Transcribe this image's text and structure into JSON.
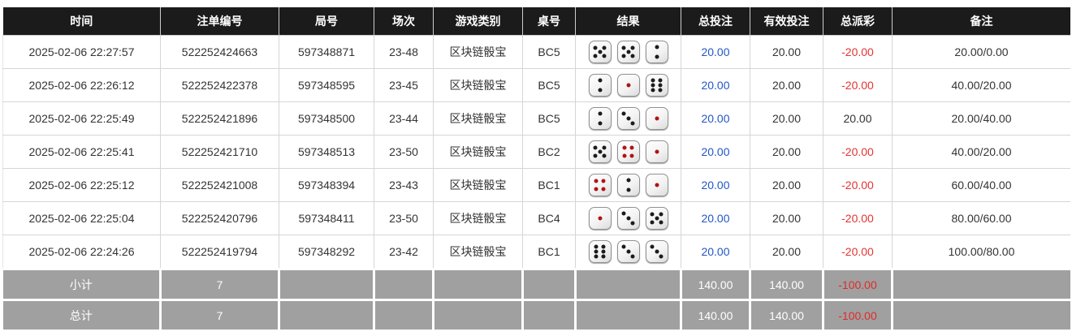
{
  "table": {
    "headers": [
      {
        "key": "time",
        "label": "时间"
      },
      {
        "key": "bet-id",
        "label": "注单编号"
      },
      {
        "key": "round-id",
        "label": "局号"
      },
      {
        "key": "session",
        "label": "场次"
      },
      {
        "key": "game-type",
        "label": "游戏类别"
      },
      {
        "key": "table-no",
        "label": "桌号"
      },
      {
        "key": "result",
        "label": "结果"
      },
      {
        "key": "total-bet",
        "label": "总投注"
      },
      {
        "key": "valid-bet",
        "label": "有效投注"
      },
      {
        "key": "payout",
        "label": "总派彩"
      },
      {
        "key": "remark",
        "label": "备注"
      }
    ],
    "rows": [
      {
        "time": "2025-02-06 22:27:57",
        "bet_id": "522252424663",
        "round_id": "597348871",
        "session": "23-48",
        "game_type": "区块链骰宝",
        "table_no": "BC5",
        "dice": [
          {
            "value": 5,
            "color": "black"
          },
          {
            "value": 5,
            "color": "black"
          },
          {
            "value": 2,
            "color": "black"
          }
        ],
        "total_bet": "20.00",
        "valid_bet": "20.00",
        "payout": "-20.00",
        "remark": "20.00/0.00"
      },
      {
        "time": "2025-02-06 22:26:12",
        "bet_id": "522252422378",
        "round_id": "597348595",
        "session": "23-45",
        "game_type": "区块链骰宝",
        "table_no": "BC5",
        "dice": [
          {
            "value": 2,
            "color": "black"
          },
          {
            "value": 1,
            "color": "red"
          },
          {
            "value": 6,
            "color": "black"
          }
        ],
        "total_bet": "20.00",
        "valid_bet": "20.00",
        "payout": "-20.00",
        "remark": "40.00/20.00"
      },
      {
        "time": "2025-02-06 22:25:49",
        "bet_id": "522252421896",
        "round_id": "597348500",
        "session": "23-44",
        "game_type": "区块链骰宝",
        "table_no": "BC5",
        "dice": [
          {
            "value": 2,
            "color": "black"
          },
          {
            "value": 3,
            "color": "black"
          },
          {
            "value": 1,
            "color": "red"
          }
        ],
        "total_bet": "20.00",
        "valid_bet": "20.00",
        "payout": "20.00",
        "remark": "20.00/40.00"
      },
      {
        "time": "2025-02-06 22:25:41",
        "bet_id": "522252421710",
        "round_id": "597348513",
        "session": "23-50",
        "game_type": "区块链骰宝",
        "table_no": "BC2",
        "dice": [
          {
            "value": 5,
            "color": "black"
          },
          {
            "value": 4,
            "color": "red"
          },
          {
            "value": 1,
            "color": "red"
          }
        ],
        "total_bet": "20.00",
        "valid_bet": "20.00",
        "payout": "-20.00",
        "remark": "40.00/20.00"
      },
      {
        "time": "2025-02-06 22:25:12",
        "bet_id": "522252421008",
        "round_id": "597348394",
        "session": "23-43",
        "game_type": "区块链骰宝",
        "table_no": "BC1",
        "dice": [
          {
            "value": 4,
            "color": "red"
          },
          {
            "value": 2,
            "color": "black"
          },
          {
            "value": 1,
            "color": "red"
          }
        ],
        "total_bet": "20.00",
        "valid_bet": "20.00",
        "payout": "-20.00",
        "remark": "60.00/40.00"
      },
      {
        "time": "2025-02-06 22:25:04",
        "bet_id": "522252420796",
        "round_id": "597348411",
        "session": "23-50",
        "game_type": "区块链骰宝",
        "table_no": "BC4",
        "dice": [
          {
            "value": 1,
            "color": "red"
          },
          {
            "value": 3,
            "color": "black"
          },
          {
            "value": 5,
            "color": "black"
          }
        ],
        "total_bet": "20.00",
        "valid_bet": "20.00",
        "payout": "-20.00",
        "remark": "80.00/60.00"
      },
      {
        "time": "2025-02-06 22:24:26",
        "bet_id": "522252419794",
        "round_id": "597348292",
        "session": "23-42",
        "game_type": "区块链骰宝",
        "table_no": "BC1",
        "dice": [
          {
            "value": 6,
            "color": "black"
          },
          {
            "value": 3,
            "color": "black"
          },
          {
            "value": 3,
            "color": "black"
          }
        ],
        "total_bet": "20.00",
        "valid_bet": "20.00",
        "payout": "-20.00",
        "remark": "100.00/80.00"
      }
    ],
    "footer_rows": [
      {
        "label": "小计",
        "count": "7",
        "total_bet": "140.00",
        "valid_bet": "140.00",
        "payout": "-100.00"
      },
      {
        "label": "总计",
        "count": "7",
        "total_bet": "140.00",
        "valid_bet": "140.00",
        "payout": "-100.00"
      }
    ]
  },
  "colors": {
    "header_bg": "#1b1b1b",
    "footer_bg": "#a0a0a0",
    "accent_blue": "#2456c4",
    "negative_red": "#e23434",
    "footer_negative_red": "#e02b2b",
    "black_pip": "#1c1c1c",
    "red_pip": "#b01414"
  }
}
